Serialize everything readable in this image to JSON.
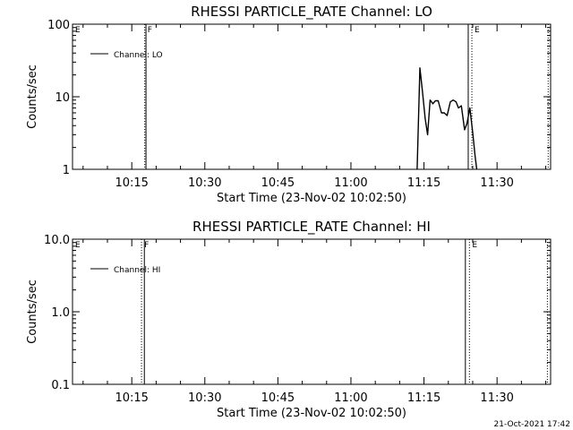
{
  "footer": {
    "timestamp": "21-Oct-2021 17:42"
  },
  "chart_data": [
    {
      "type": "line",
      "title": "RHESSI PARTICLE_RATE Channel: LO",
      "xlabel": "Start Time (23-Nov-02 10:02:50)",
      "ylabel": "Counts/sec",
      "y_scale": "log",
      "ylim": [
        1,
        100
      ],
      "xlim": [
        "10:02:50",
        "11:41:00"
      ],
      "x_ticks": [
        "10:15",
        "10:30",
        "10:45",
        "11:00",
        "11:15",
        "11:30"
      ],
      "y_ticks": [
        "1",
        "10",
        "100"
      ],
      "legend": {
        "label": "Channel: LO",
        "position": "top-left"
      },
      "markers": [
        {
          "label": "E",
          "time": "10:02:50",
          "style": "dotted"
        },
        {
          "label": "F",
          "time": "10:17:40",
          "style": "dotted"
        },
        {
          "label": "",
          "time": "10:17:55",
          "style": "solid"
        },
        {
          "label": "",
          "time": "11:24:05",
          "style": "solid"
        },
        {
          "label": "E",
          "time": "11:24:50",
          "style": "dotted"
        },
        {
          "label": "",
          "time": "11:40:30",
          "style": "dotted"
        }
      ],
      "series": [
        {
          "name": "Channel: LO",
          "x": [
            "11:13:35",
            "11:14:10",
            "11:14:40",
            "11:15:15",
            "11:15:45",
            "11:16:15",
            "11:16:50",
            "11:17:20",
            "11:17:55",
            "11:18:35",
            "11:19:10",
            "11:19:45",
            "11:20:25",
            "11:21:00",
            "11:21:35",
            "11:22:05",
            "11:22:40",
            "11:23:20",
            "11:23:50",
            "11:24:25",
            "11:25:00",
            "11:25:30",
            "11:25:50"
          ],
          "values": [
            1.0,
            25,
            12,
            5,
            3,
            9,
            8,
            8.8,
            8.8,
            6,
            6,
            5.5,
            8.5,
            9,
            8.5,
            7,
            7.5,
            3.5,
            4.3,
            7,
            3.2,
            1.5,
            1.0
          ]
        }
      ]
    },
    {
      "type": "line",
      "title": "RHESSI PARTICLE_RATE Channel: HI",
      "xlabel": "Start Time (23-Nov-02 10:02:50)",
      "ylabel": "Counts/sec",
      "y_scale": "log",
      "ylim": [
        0.1,
        10
      ],
      "xlim": [
        "10:02:50",
        "11:41:00"
      ],
      "x_ticks": [
        "10:15",
        "10:30",
        "10:45",
        "11:00",
        "11:15",
        "11:30"
      ],
      "y_ticks": [
        "0.1",
        "1.0",
        "10.0"
      ],
      "legend": {
        "label": "Channel: HI",
        "position": "top-left"
      },
      "markers": [
        {
          "label": "E",
          "time": "10:02:50",
          "style": "dotted"
        },
        {
          "label": "F",
          "time": "10:17:00",
          "style": "dotted"
        },
        {
          "label": "",
          "time": "10:17:35",
          "style": "solid"
        },
        {
          "label": "",
          "time": "11:23:30",
          "style": "solid"
        },
        {
          "label": "E",
          "time": "11:24:20",
          "style": "dotted"
        },
        {
          "label": "",
          "time": "11:40:20",
          "style": "dotted"
        }
      ],
      "series": [
        {
          "name": "Channel: HI",
          "x": [],
          "values": []
        }
      ]
    }
  ]
}
